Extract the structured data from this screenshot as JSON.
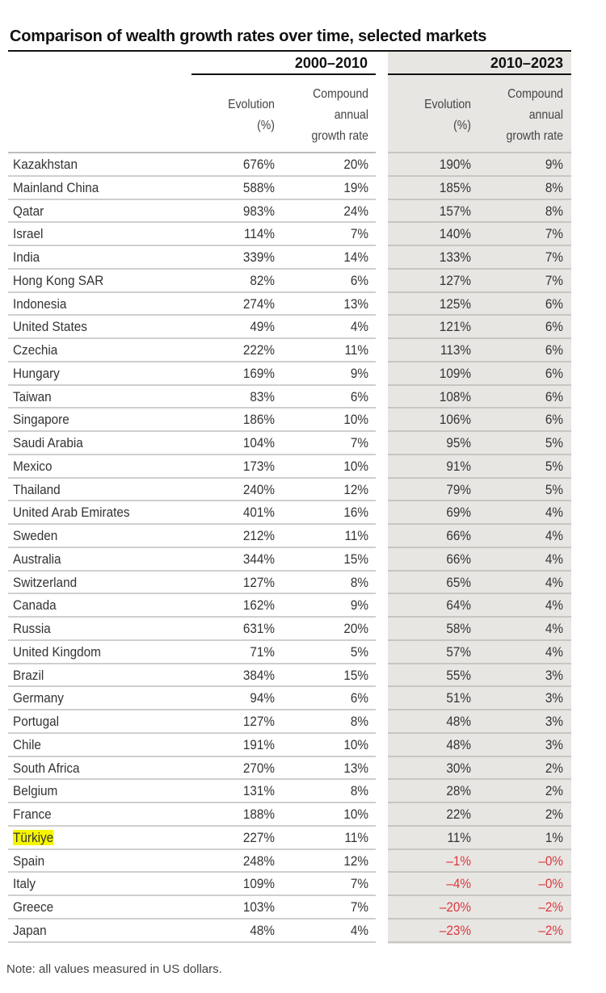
{
  "title": "Comparison of wealth growth rates over time, selected markets",
  "periods": [
    "2000–2010",
    "2010–2023"
  ],
  "column_headers": {
    "evolution": [
      "Evolution",
      "(%)"
    ],
    "cagr": [
      "Compound",
      "annual",
      "growth rate"
    ]
  },
  "colors": {
    "shade": "#e8e6e3",
    "negative": "#d9383e",
    "highlight": "#f5f500"
  },
  "highlighted_row": "Türkiye",
  "rows": [
    [
      "Kazakhstan",
      "676%",
      "20%",
      "190%",
      "9%"
    ],
    [
      "Mainland China",
      "588%",
      "19%",
      "185%",
      "8%"
    ],
    [
      "Qatar",
      "983%",
      "24%",
      "157%",
      "8%"
    ],
    [
      "Israel",
      "114%",
      "7%",
      "140%",
      "7%"
    ],
    [
      "India",
      "339%",
      "14%",
      "133%",
      "7%"
    ],
    [
      "Hong Kong SAR",
      "82%",
      "6%",
      "127%",
      "7%"
    ],
    [
      "Indonesia",
      "274%",
      "13%",
      "125%",
      "6%"
    ],
    [
      "United States",
      "49%",
      "4%",
      "121%",
      "6%"
    ],
    [
      "Czechia",
      "222%",
      "11%",
      "113%",
      "6%"
    ],
    [
      "Hungary",
      "169%",
      "9%",
      "109%",
      "6%"
    ],
    [
      "Taiwan",
      "83%",
      "6%",
      "108%",
      "6%"
    ],
    [
      "Singapore",
      "186%",
      "10%",
      "106%",
      "6%"
    ],
    [
      "Saudi Arabia",
      "104%",
      "7%",
      "95%",
      "5%"
    ],
    [
      "Mexico",
      "173%",
      "10%",
      "91%",
      "5%"
    ],
    [
      "Thailand",
      "240%",
      "12%",
      "79%",
      "5%"
    ],
    [
      "United Arab Emirates",
      "401%",
      "16%",
      "69%",
      "4%"
    ],
    [
      "Sweden",
      "212%",
      "11%",
      "66%",
      "4%"
    ],
    [
      "Australia",
      "344%",
      "15%",
      "66%",
      "4%"
    ],
    [
      "Switzerland",
      "127%",
      "8%",
      "65%",
      "4%"
    ],
    [
      "Canada",
      "162%",
      "9%",
      "64%",
      "4%"
    ],
    [
      "Russia",
      "631%",
      "20%",
      "58%",
      "4%"
    ],
    [
      "United Kingdom",
      "71%",
      "5%",
      "57%",
      "4%"
    ],
    [
      "Brazil",
      "384%",
      "15%",
      "55%",
      "3%"
    ],
    [
      "Germany",
      "94%",
      "6%",
      "51%",
      "3%"
    ],
    [
      "Portugal",
      "127%",
      "8%",
      "48%",
      "3%"
    ],
    [
      "Chile",
      "191%",
      "10%",
      "48%",
      "3%"
    ],
    [
      "South Africa",
      "270%",
      "13%",
      "30%",
      "2%"
    ],
    [
      "Belgium",
      "131%",
      "8%",
      "28%",
      "2%"
    ],
    [
      "France",
      "188%",
      "10%",
      "22%",
      "2%"
    ],
    [
      "Türkiye",
      "227%",
      "11%",
      "11%",
      "1%"
    ],
    [
      "Spain",
      "248%",
      "12%",
      "–1%",
      "–0%"
    ],
    [
      "Italy",
      "109%",
      "7%",
      "–4%",
      "–0%"
    ],
    [
      "Greece",
      "103%",
      "7%",
      "–20%",
      "–2%"
    ],
    [
      "Japan",
      "48%",
      "4%",
      "–23%",
      "–2%"
    ]
  ],
  "note": "Note: all values measured in US dollars."
}
